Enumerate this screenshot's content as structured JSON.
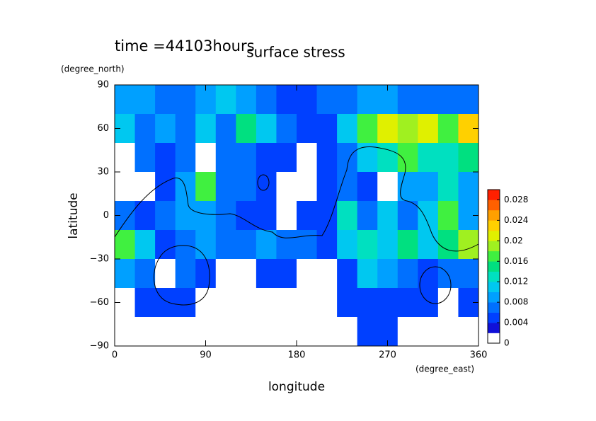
{
  "chart_data": {
    "type": "heatmap",
    "time_label": "time =44103hours",
    "title": "surface stress",
    "y_unit": "(degree_north)",
    "ylabel": "latitude",
    "x_unit": "(degree_east)",
    "xlabel": "longitude",
    "xlim": [
      0,
      360
    ],
    "ylim": [
      -90,
      90
    ],
    "xticks": [
      0,
      90,
      180,
      270,
      360
    ],
    "yticks": [
      {
        "value": -90,
        "label": "−90"
      },
      {
        "value": -60,
        "label": "−60"
      },
      {
        "value": -30,
        "label": "−30"
      },
      0,
      30,
      60,
      90
    ],
    "z": [
      [
        0.008,
        0.008,
        0.006,
        0.006,
        0.008,
        0.01,
        0.008,
        0.006,
        0.004,
        0.004,
        0.006,
        0.006,
        0.008,
        0.008,
        0.006,
        0.006,
        0.006,
        0.006
      ],
      [
        0.01,
        0.006,
        0.008,
        0.006,
        0.01,
        0.006,
        0.014,
        0.01,
        0.006,
        0.004,
        0.004,
        0.01,
        0.016,
        0.02,
        0.018,
        0.02,
        0.016,
        0.022
      ],
      [
        0.001,
        0.006,
        0.004,
        0.006,
        0.001,
        0.006,
        0.006,
        0.004,
        0.004,
        0.001,
        0.004,
        0.006,
        0.01,
        0.012,
        0.016,
        0.012,
        0.012,
        0.014
      ],
      [
        0.001,
        0.001,
        0.004,
        0.008,
        0.016,
        0.006,
        0.006,
        0.004,
        0.001,
        0.001,
        0.004,
        0.006,
        0.004,
        0.001,
        0.008,
        0.008,
        0.012,
        0.008
      ],
      [
        0.006,
        0.004,
        0.006,
        0.008,
        0.008,
        0.006,
        0.004,
        0.004,
        0.001,
        0.004,
        0.004,
        0.012,
        0.006,
        0.01,
        0.006,
        0.01,
        0.016,
        0.008
      ],
      [
        0.016,
        0.01,
        0.004,
        0.006,
        0.008,
        0.006,
        0.006,
        0.008,
        0.006,
        0.006,
        0.004,
        0.01,
        0.012,
        0.01,
        0.014,
        0.01,
        0.014,
        0.018
      ],
      [
        0.008,
        0.006,
        0.001,
        0.006,
        0.004,
        0.001,
        0.001,
        0.004,
        0.004,
        0.001,
        0.001,
        0.004,
        0.01,
        0.008,
        0.006,
        0.004,
        0.006,
        0.006
      ],
      [
        0.001,
        0.004,
        0.004,
        0.004,
        0.001,
        0.001,
        0.001,
        0.001,
        0.001,
        0.001,
        0.001,
        0.004,
        0.004,
        0.004,
        0.004,
        0.004,
        0.001,
        0.004
      ],
      [
        0.001,
        0.001,
        0.001,
        0.001,
        0.001,
        0.001,
        0.001,
        0.001,
        0.001,
        0.001,
        0.001,
        0.001,
        0.004,
        0.004,
        0.001,
        0.001,
        0.001,
        0.001
      ]
    ],
    "colorbar": {
      "lim": [
        0,
        0.03
      ],
      "ticks": [
        0,
        0.004,
        0.008,
        0.012,
        0.016,
        0.02,
        0.024,
        0.028
      ],
      "colors": [
        "#ffffff",
        "#1010d8",
        "#0040ff",
        "#0070ff",
        "#00a0ff",
        "#00c8f0",
        "#00e0c0",
        "#00e080",
        "#40f040",
        "#a0f020",
        "#e0f000",
        "#ffd000",
        "#ffa000",
        "#ff6000",
        "#ff2000"
      ]
    }
  }
}
